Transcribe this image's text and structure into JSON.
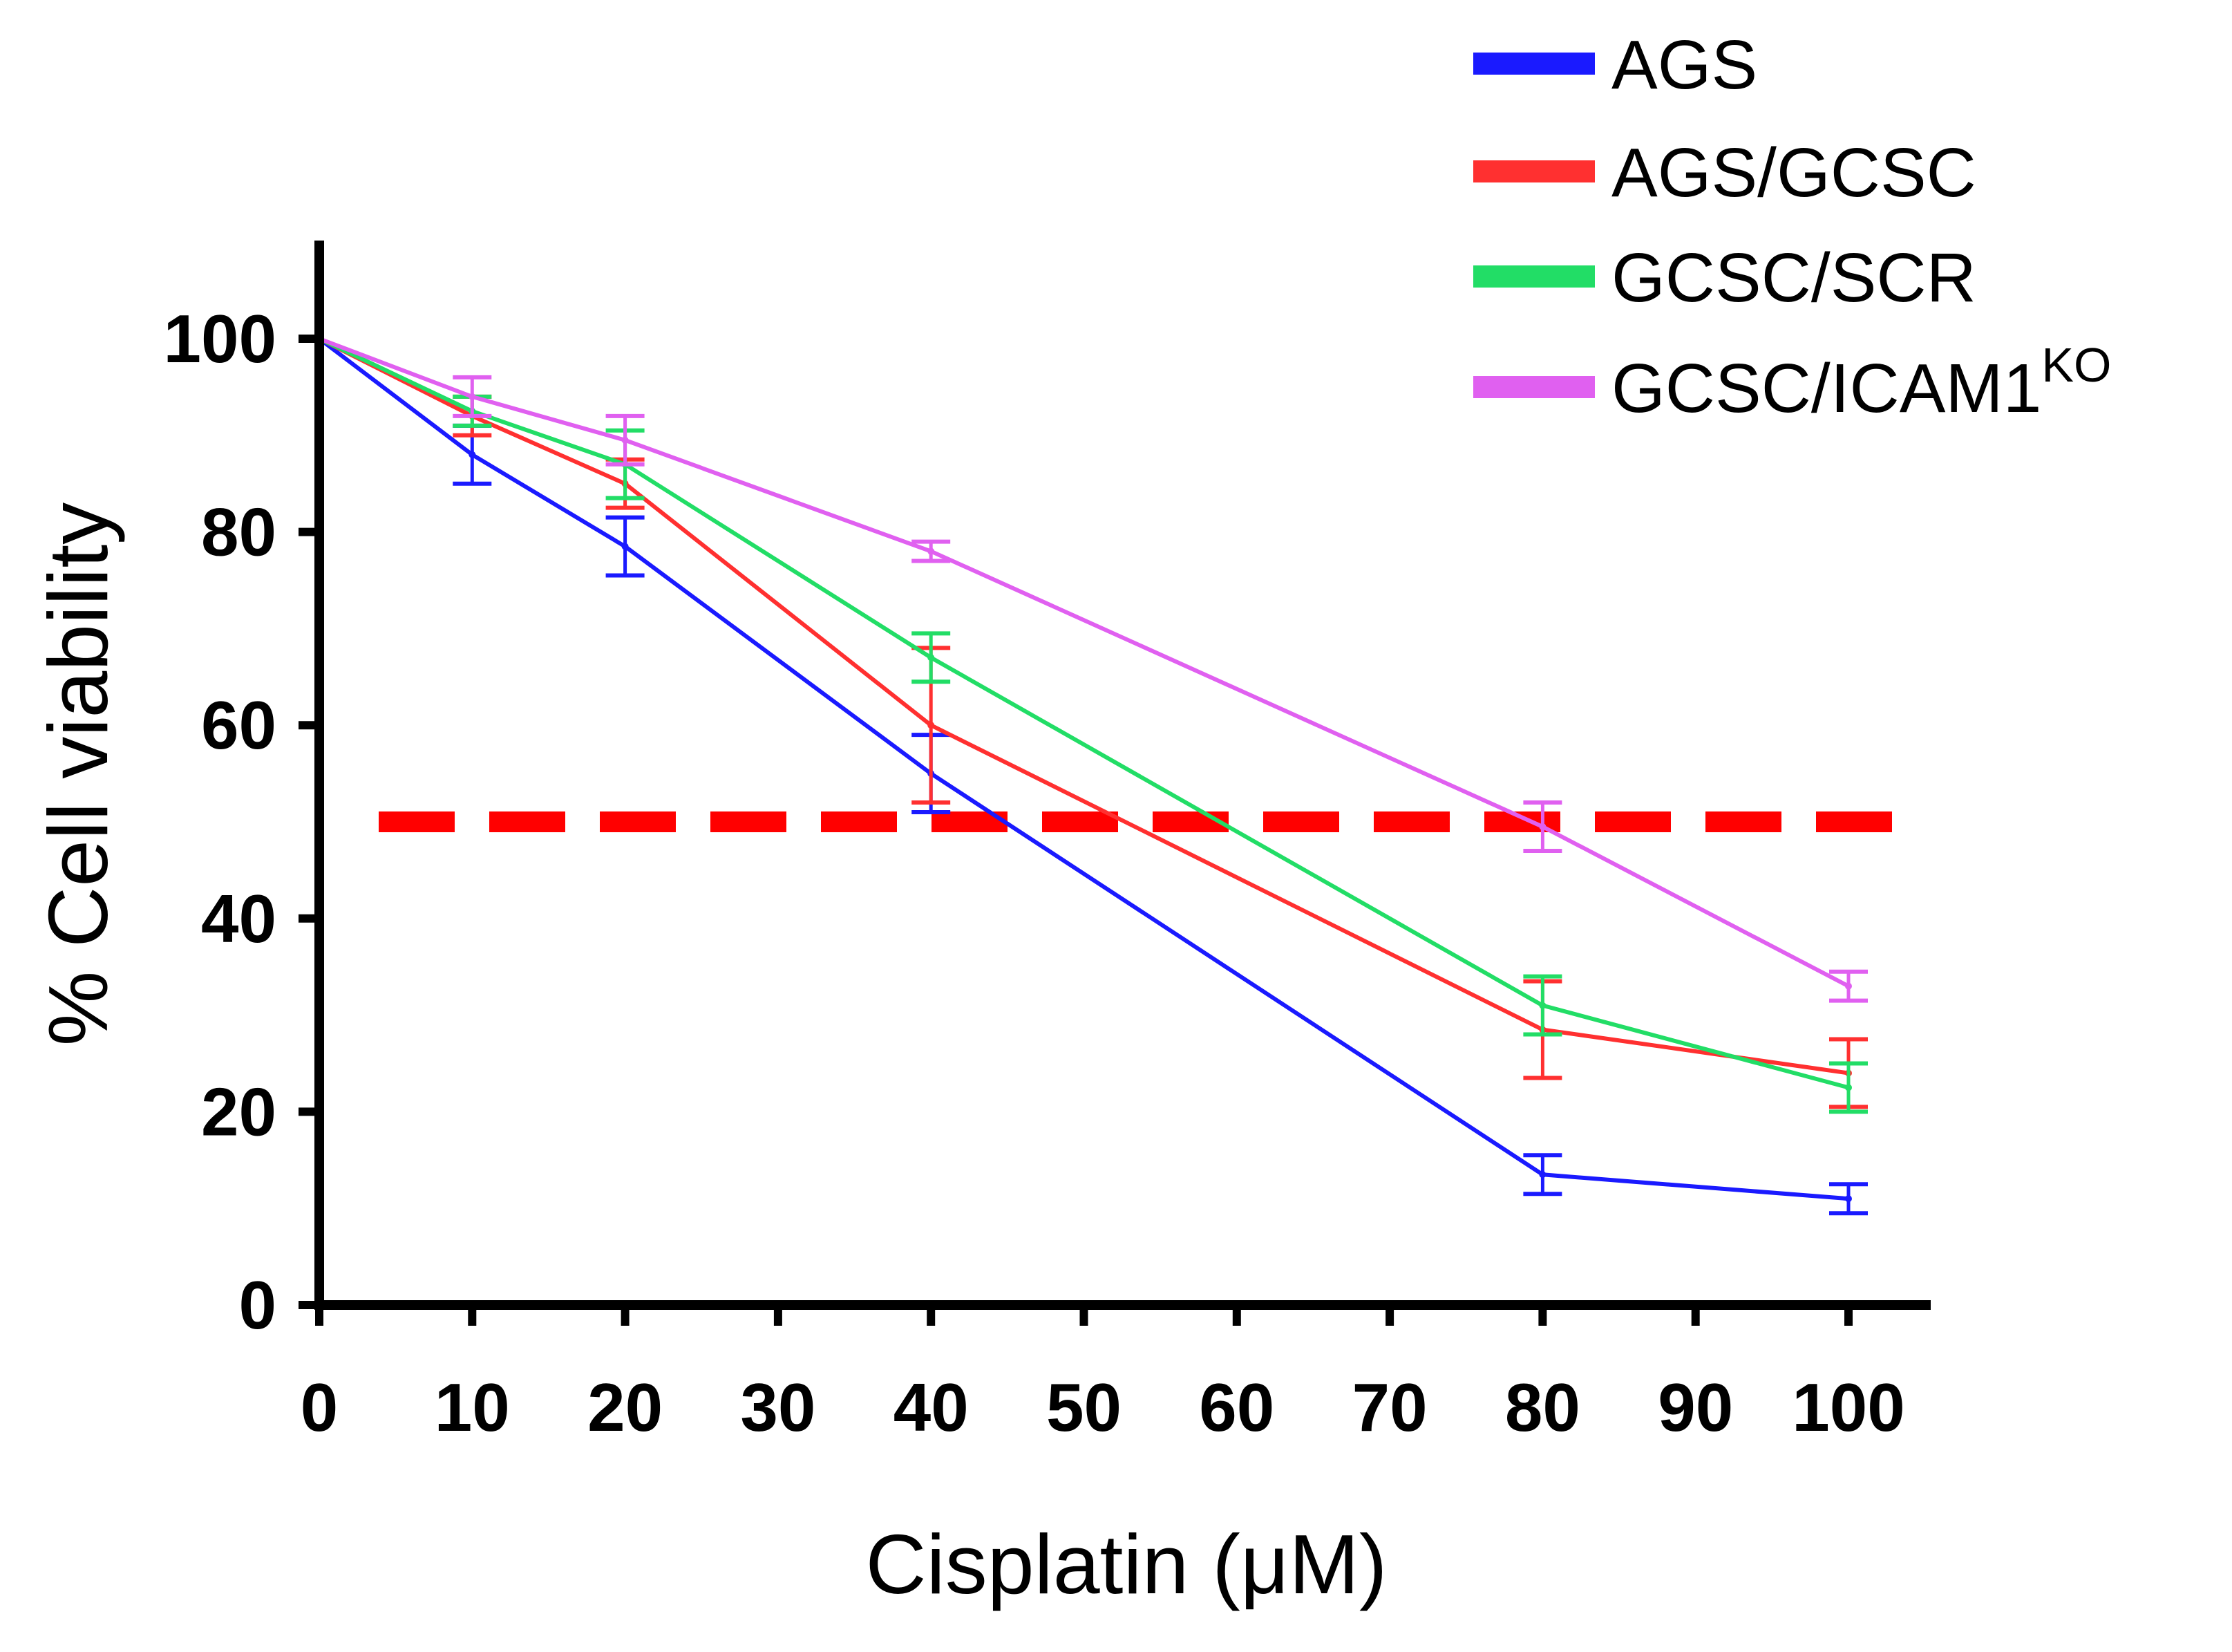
{
  "chart_data": {
    "type": "line",
    "title": "",
    "xlabel": "Cisplatin (μM)",
    "ylabel": "% Cell viability",
    "xlim": [
      0,
      100
    ],
    "ylim": [
      0,
      110
    ],
    "x_ticks": [
      "0",
      "10",
      "20",
      "30",
      "40",
      "50",
      "60",
      "70",
      "80",
      "90",
      "100"
    ],
    "y_ticks": [
      "0",
      "20",
      "40",
      "60",
      "80",
      "100"
    ],
    "x": [
      0,
      10,
      20,
      40,
      80,
      100
    ],
    "reference_line": {
      "y": 50,
      "color": "#ff0000",
      "style": "dashed"
    },
    "legend_position": "top-right",
    "series": [
      {
        "name": "AGS",
        "superscript": "",
        "color": "#1a1aff",
        "values": [
          100,
          88,
          78.5,
          55,
          13.5,
          11
        ],
        "errors": [
          0,
          3,
          3,
          4,
          2,
          1.5
        ]
      },
      {
        "name": "AGS/GCSC",
        "superscript": "",
        "color": "#ff3030",
        "values": [
          100,
          92,
          85,
          60,
          28.5,
          24
        ],
        "errors": [
          0,
          2,
          2.5,
          8,
          5,
          3.5
        ]
      },
      {
        "name": "GCSC/SCR",
        "superscript": "",
        "color": "#22dd66",
        "values": [
          100,
          92.5,
          87,
          67,
          31,
          22.5
        ],
        "errors": [
          0,
          1.5,
          3.5,
          2.5,
          3,
          2.5
        ]
      },
      {
        "name": "GCSC/ICAM1",
        "superscript": "KO",
        "color": "#e060f0",
        "values": [
          100,
          94,
          89.5,
          78,
          49.5,
          33
        ],
        "errors": [
          0,
          2,
          2.5,
          1,
          2.5,
          1.5
        ]
      }
    ]
  }
}
